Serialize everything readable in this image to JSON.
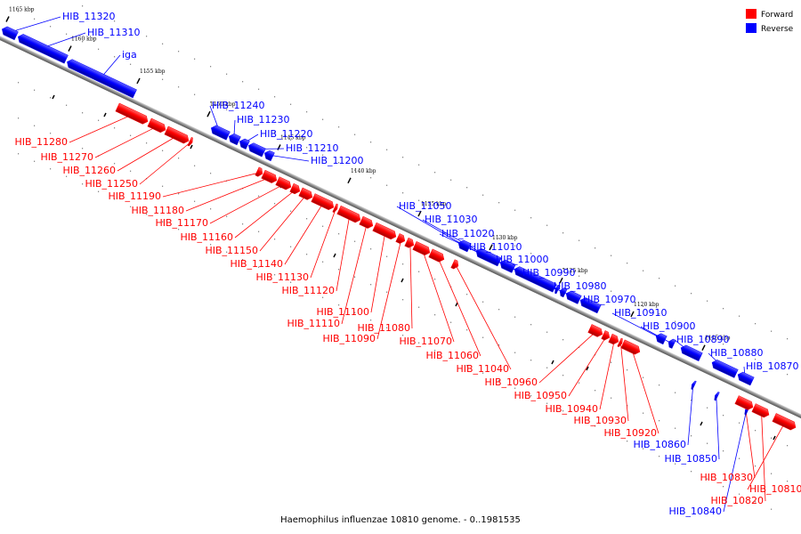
{
  "caption": "Haemophilus influenzae 10810 genome. - 0..1981535",
  "legend": {
    "forward": {
      "label": "Forward",
      "color": "#ff0000"
    },
    "reverse": {
      "label": "Reverse",
      "color": "#0000ff"
    }
  },
  "axis": {
    "start_kbp": 1165,
    "end_kbp": 1110,
    "ticks": [
      "1165 kbp",
      "1160 kbp",
      "1155 kbp",
      "1150 kbp",
      "1145 kbp",
      "1140 kbp",
      "1135 kbp",
      "1130 kbp",
      "1125 kbp",
      "1120 kbp",
      "1115 kbp"
    ]
  },
  "genes": [
    {
      "name": "HIB_11320",
      "strand": "reverse"
    },
    {
      "name": "HIB_11310",
      "strand": "reverse"
    },
    {
      "name": "iga",
      "strand": "reverse"
    },
    {
      "name": "HIB_11280",
      "strand": "forward"
    },
    {
      "name": "HIB_11270",
      "strand": "forward"
    },
    {
      "name": "HIB_11260",
      "strand": "forward"
    },
    {
      "name": "HIB_11250",
      "strand": "forward"
    },
    {
      "name": "HIB_11240",
      "strand": "reverse"
    },
    {
      "name": "HIB_11230",
      "strand": "reverse"
    },
    {
      "name": "HIB_11220",
      "strand": "reverse"
    },
    {
      "name": "HIB_11210",
      "strand": "reverse"
    },
    {
      "name": "HIB_11200",
      "strand": "reverse"
    },
    {
      "name": "HIB_11190",
      "strand": "forward"
    },
    {
      "name": "HIB_11180",
      "strand": "forward"
    },
    {
      "name": "HIB_11170",
      "strand": "forward"
    },
    {
      "name": "HIB_11160",
      "strand": "forward"
    },
    {
      "name": "HIB_11150",
      "strand": "forward"
    },
    {
      "name": "HIB_11140",
      "strand": "forward"
    },
    {
      "name": "HIB_11130",
      "strand": "forward"
    },
    {
      "name": "HIB_11120",
      "strand": "forward"
    },
    {
      "name": "HIB_11110",
      "strand": "forward"
    },
    {
      "name": "HIB_11100",
      "strand": "forward"
    },
    {
      "name": "HIB_11090",
      "strand": "forward"
    },
    {
      "name": "HIB_11080",
      "strand": "forward"
    },
    {
      "name": "HIB_11070",
      "strand": "forward"
    },
    {
      "name": "HIB_11060",
      "strand": "forward"
    },
    {
      "name": "HIB_11040",
      "strand": "forward"
    },
    {
      "name": "HIB_11050",
      "strand": "reverse"
    },
    {
      "name": "HIB_11030",
      "strand": "reverse"
    },
    {
      "name": "HIB_11020",
      "strand": "reverse"
    },
    {
      "name": "HIB_11010",
      "strand": "reverse"
    },
    {
      "name": "HIB_11000",
      "strand": "reverse"
    },
    {
      "name": "HIB_10990",
      "strand": "reverse"
    },
    {
      "name": "HIB_10980",
      "strand": "reverse"
    },
    {
      "name": "HIB_10970",
      "strand": "reverse"
    },
    {
      "name": "HIB_10960",
      "strand": "forward"
    },
    {
      "name": "HIB_10950",
      "strand": "forward"
    },
    {
      "name": "HIB_10940",
      "strand": "forward"
    },
    {
      "name": "HIB_10930",
      "strand": "forward"
    },
    {
      "name": "HIB_10920",
      "strand": "forward"
    },
    {
      "name": "HIB_10910",
      "strand": "reverse"
    },
    {
      "name": "HIB_10900",
      "strand": "reverse"
    },
    {
      "name": "HIB_10890",
      "strand": "reverse"
    },
    {
      "name": "HIB_10880",
      "strand": "reverse"
    },
    {
      "name": "HIB_10870",
      "strand": "reverse"
    },
    {
      "name": "HIB_10860",
      "strand": "reverse"
    },
    {
      "name": "HIB_10850",
      "strand": "reverse"
    },
    {
      "name": "HIB_10840",
      "strand": "reverse"
    },
    {
      "name": "HIB_10830",
      "strand": "forward"
    },
    {
      "name": "HIB_10820",
      "strand": "forward"
    },
    {
      "name": "HIB_10810",
      "strand": "forward"
    }
  ]
}
